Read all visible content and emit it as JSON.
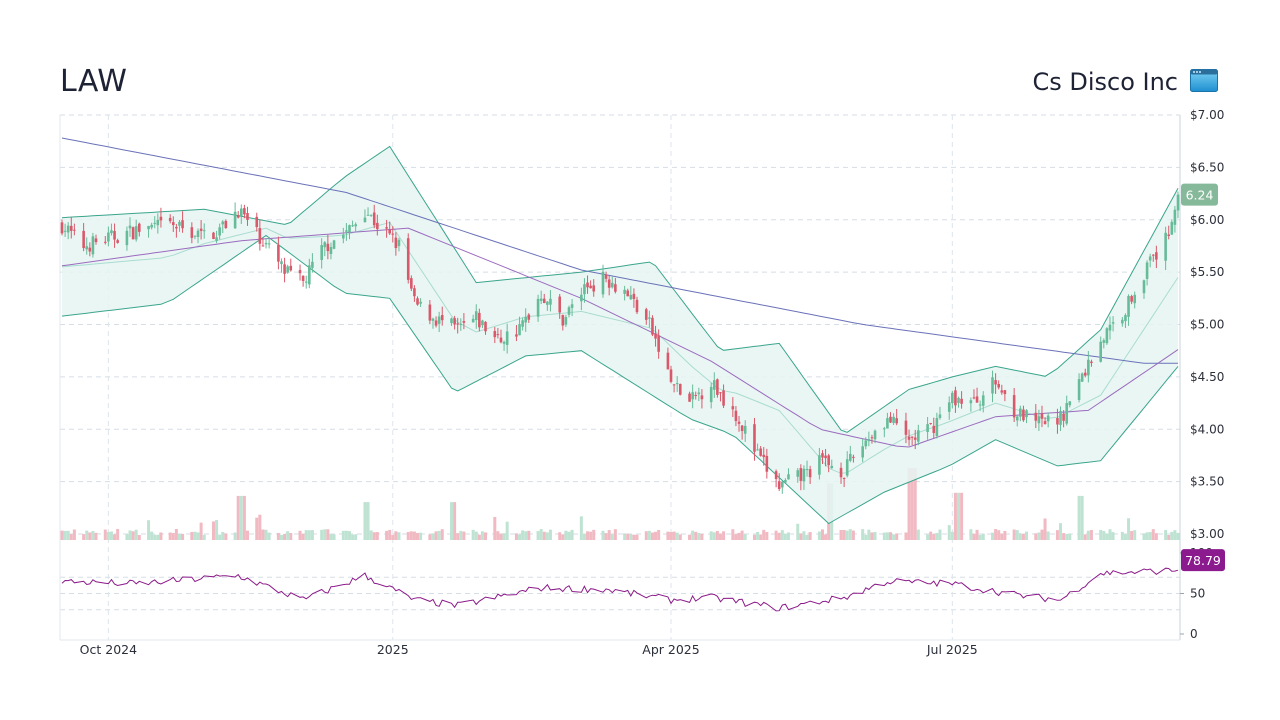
{
  "header": {
    "ticker": "LAW",
    "company": "Cs Disco Inc"
  },
  "icons": {
    "logo": "browser-window-icon"
  },
  "colors": {
    "up": "#66bb99",
    "down": "#d9596b",
    "band_fill": "#e6f5f2",
    "band_line": "#3aa58c",
    "sma_200": "#6a72b8",
    "sma_50": "#9b6bbf",
    "rsi": "#8b1a89",
    "price_tag": "#86b89a",
    "rsi_tag": "#8b1a8e"
  },
  "chart_data": [
    {
      "type": "candlestick",
      "title": "",
      "y_ticks": [
        "$7.00",
        "$6.50",
        "$6.00",
        "$5.50",
        "$5.00",
        "$4.50",
        "$4.00",
        "$3.50",
        "$3.00"
      ],
      "y_values": [
        7.0,
        6.5,
        6.0,
        5.5,
        5.0,
        4.5,
        4.0,
        3.5,
        3.0
      ],
      "ylim": [
        3.0,
        7.0
      ],
      "x_ticks": [
        "Oct 2024",
        "2025",
        "Apr 2025",
        "Jul 2025"
      ],
      "x_range": [
        "2024-09-16",
        "2025-09-12"
      ],
      "last_price_label": "6.24",
      "close_anchors": [
        [
          "2024-09-16",
          5.95
        ],
        [
          "2024-09-23",
          5.75
        ],
        [
          "2024-10-01",
          5.82
        ],
        [
          "2024-10-10",
          5.9
        ],
        [
          "2024-10-21",
          5.95
        ],
        [
          "2024-10-31",
          5.85
        ],
        [
          "2024-11-06",
          5.9
        ],
        [
          "2024-11-12",
          6.1
        ],
        [
          "2024-11-20",
          5.8
        ],
        [
          "2024-11-27",
          5.5
        ],
        [
          "2024-12-03",
          5.4
        ],
        [
          "2024-12-10",
          5.75
        ],
        [
          "2024-12-18",
          5.9
        ],
        [
          "2024-12-23",
          6.1
        ],
        [
          "2024-12-27",
          5.95
        ],
        [
          "2025-01-03",
          5.75
        ],
        [
          "2025-01-08",
          5.2
        ],
        [
          "2025-01-15",
          5.05
        ],
        [
          "2025-01-22",
          4.95
        ],
        [
          "2025-01-28",
          5.05
        ],
        [
          "2025-02-04",
          4.85
        ],
        [
          "2025-02-11",
          4.95
        ],
        [
          "2025-02-18",
          5.3
        ],
        [
          "2025-02-25",
          5.05
        ],
        [
          "2025-03-04",
          5.35
        ],
        [
          "2025-03-11",
          5.45
        ],
        [
          "2025-03-18",
          5.3
        ],
        [
          "2025-03-25",
          5.0
        ],
        [
          "2025-04-01",
          4.45
        ],
        [
          "2025-04-07",
          4.25
        ],
        [
          "2025-04-14",
          4.45
        ],
        [
          "2025-04-22",
          4.15
        ],
        [
          "2025-04-29",
          3.75
        ],
        [
          "2025-05-06",
          3.45
        ],
        [
          "2025-05-13",
          3.55
        ],
        [
          "2025-05-20",
          3.7
        ],
        [
          "2025-05-27",
          3.6
        ],
        [
          "2025-06-03",
          3.9
        ],
        [
          "2025-06-10",
          4.1
        ],
        [
          "2025-06-17",
          3.9
        ],
        [
          "2025-06-24",
          4.0
        ],
        [
          "2025-07-01",
          4.3
        ],
        [
          "2025-07-08",
          4.25
        ],
        [
          "2025-07-15",
          4.45
        ],
        [
          "2025-07-22",
          4.15
        ],
        [
          "2025-07-29",
          4.05
        ],
        [
          "2025-08-05",
          4.1
        ],
        [
          "2025-08-11",
          4.45
        ],
        [
          "2025-08-18",
          4.85
        ],
        [
          "2025-08-25",
          5.1
        ],
        [
          "2025-09-01",
          5.5
        ],
        [
          "2025-09-08",
          5.8
        ],
        [
          "2025-09-12",
          6.24
        ]
      ],
      "sma_200_anchors": [
        [
          "2024-09-16",
          6.78
        ],
        [
          "2024-12-17",
          6.26
        ],
        [
          "2025-03-03",
          5.52
        ],
        [
          "2025-06-02",
          5.0
        ],
        [
          "2025-09-01",
          4.63
        ],
        [
          "2025-09-12",
          4.63
        ]
      ],
      "sma_50_anchors": [
        [
          "2024-09-16",
          5.56
        ],
        [
          "2024-11-13",
          5.8
        ],
        [
          "2025-01-06",
          5.92
        ],
        [
          "2025-03-03",
          5.25
        ],
        [
          "2025-04-14",
          4.65
        ],
        [
          "2025-05-19",
          4.0
        ],
        [
          "2025-06-16",
          3.82
        ],
        [
          "2025-07-15",
          4.12
        ],
        [
          "2025-08-14",
          4.18
        ],
        [
          "2025-09-12",
          4.76
        ]
      ],
      "bollinger_upper_anchors": [
        [
          "2024-09-16",
          6.02
        ],
        [
          "2024-11-01",
          6.1
        ],
        [
          "2024-11-28",
          5.95
        ],
        [
          "2024-12-16",
          6.4
        ],
        [
          "2024-12-31",
          6.7
        ],
        [
          "2025-01-28",
          5.4
        ],
        [
          "2025-03-03",
          5.5
        ],
        [
          "2025-03-26",
          5.6
        ],
        [
          "2025-04-17",
          4.75
        ],
        [
          "2025-05-06",
          4.82
        ],
        [
          "2025-05-27",
          3.95
        ],
        [
          "2025-06-17",
          4.38
        ],
        [
          "2025-07-01",
          4.5
        ],
        [
          "2025-07-15",
          4.6
        ],
        [
          "2025-08-01",
          4.5
        ],
        [
          "2025-08-18",
          4.95
        ],
        [
          "2025-09-12",
          6.3
        ]
      ],
      "bollinger_lower_anchors": [
        [
          "2024-09-16",
          5.08
        ],
        [
          "2024-10-20",
          5.2
        ],
        [
          "2024-11-21",
          5.85
        ],
        [
          "2024-12-16",
          5.3
        ],
        [
          "2024-12-31",
          5.25
        ],
        [
          "2025-01-21",
          4.35
        ],
        [
          "2025-02-13",
          4.7
        ],
        [
          "2025-03-03",
          4.75
        ],
        [
          "2025-04-07",
          4.1
        ],
        [
          "2025-04-21",
          3.95
        ],
        [
          "2025-05-22",
          3.1
        ],
        [
          "2025-06-09",
          3.4
        ],
        [
          "2025-06-30",
          3.65
        ],
        [
          "2025-07-15",
          3.9
        ],
        [
          "2025-08-04",
          3.65
        ],
        [
          "2025-08-18",
          3.7
        ],
        [
          "2025-09-12",
          4.6
        ]
      ]
    },
    {
      "type": "bar",
      "title": "",
      "series": [
        {
          "name": "",
          "values": "daily volume (relative)"
        }
      ],
      "note_spikes": [
        [
          "2024-11-13",
          0.55
        ],
        [
          "2024-12-23",
          0.45
        ],
        [
          "2025-01-20",
          0.45
        ],
        [
          "2025-05-23",
          0.75
        ],
        [
          "2025-06-18",
          1.0
        ],
        [
          "2025-07-03",
          0.6
        ],
        [
          "2025-08-11",
          0.55
        ]
      ]
    },
    {
      "type": "line",
      "title": "",
      "y_ticks": [
        "100",
        "50",
        "0"
      ],
      "ylim": [
        0,
        100
      ],
      "reference_lines": [
        70,
        50,
        30
      ],
      "last_value_label": "78.79",
      "rsi_anchors": [
        [
          "2024-09-16",
          65
        ],
        [
          "2024-10-10",
          62
        ],
        [
          "2024-11-12",
          72
        ],
        [
          "2024-12-03",
          42
        ],
        [
          "2024-12-23",
          72
        ],
        [
          "2025-01-08",
          42
        ],
        [
          "2025-01-22",
          35
        ],
        [
          "2025-02-18",
          57
        ],
        [
          "2025-03-11",
          55
        ],
        [
          "2025-04-01",
          42
        ],
        [
          "2025-04-14",
          45
        ],
        [
          "2025-05-06",
          32
        ],
        [
          "2025-05-27",
          45
        ],
        [
          "2025-06-10",
          65
        ],
        [
          "2025-07-01",
          62
        ],
        [
          "2025-07-22",
          48
        ],
        [
          "2025-08-05",
          42
        ],
        [
          "2025-08-18",
          75
        ],
        [
          "2025-09-12",
          78.79
        ]
      ]
    }
  ]
}
